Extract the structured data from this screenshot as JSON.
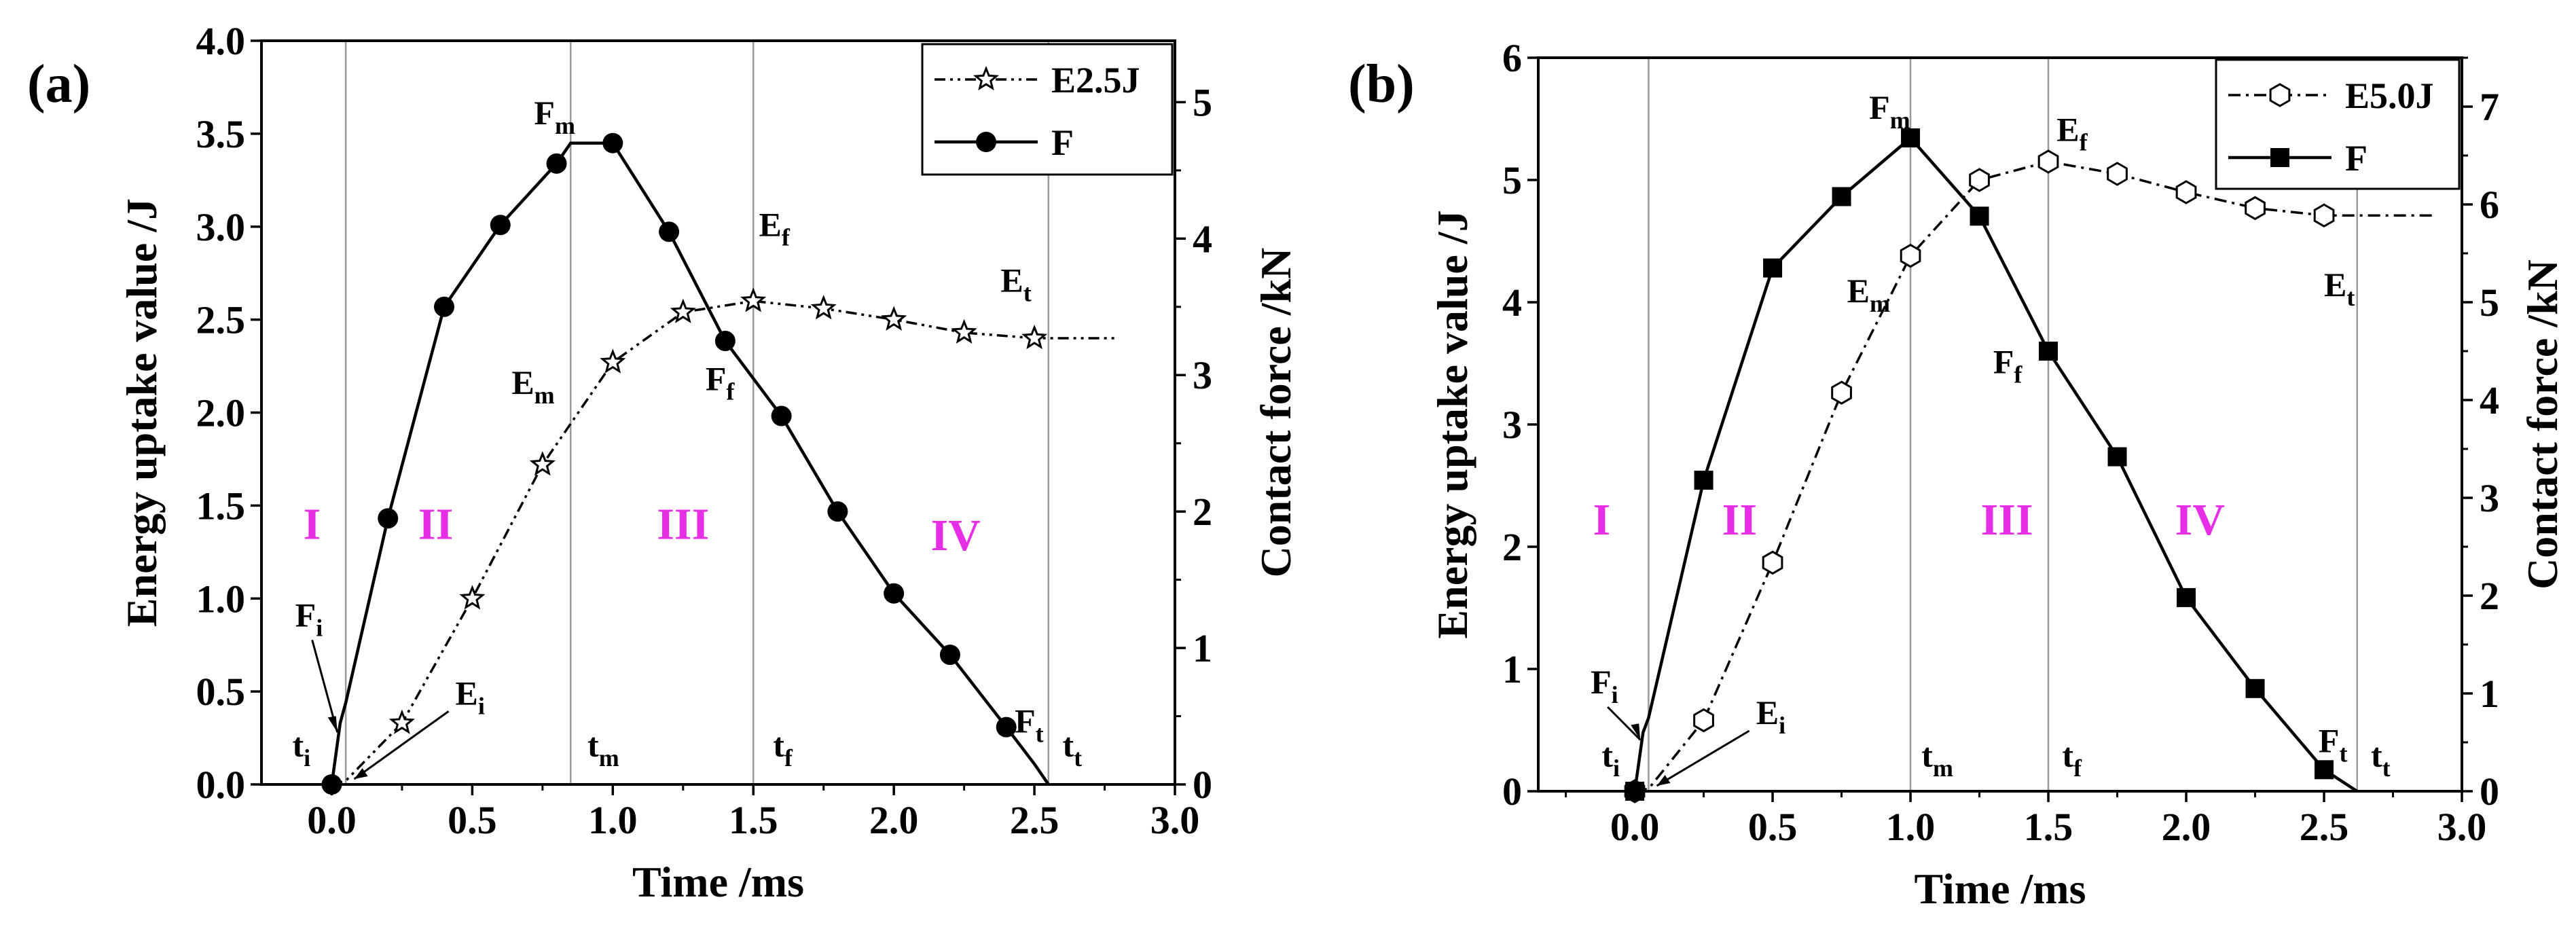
{
  "chart_data": [
    {
      "type": "line",
      "panel": "(a)",
      "xlabel": "Time /ms",
      "ylabel_left": "Energy uptake value /J",
      "ylabel_right": "Contact force /kN",
      "xlim": [
        -0.25,
        3.0
      ],
      "ylim_left": [
        0.0,
        4.0
      ],
      "ylim_right": [
        0,
        5.45
      ],
      "xticks": [
        "0.0",
        "0.5",
        "1.0",
        "1.5",
        "2.0",
        "2.5",
        "3.0"
      ],
      "xtick_values": [
        0,
        0.5,
        1,
        1.5,
        2,
        2.5,
        3
      ],
      "yticks_left": [
        "0.0",
        "0.5",
        "1.0",
        "1.5",
        "2.0",
        "2.5",
        "3.0",
        "3.5",
        "4.0"
      ],
      "ytick_left_values": [
        0,
        0.5,
        1,
        1.5,
        2,
        2.5,
        3,
        3.5,
        4
      ],
      "yticks_right": [
        "0",
        "1",
        "2",
        "3",
        "4",
        "5"
      ],
      "ytick_right_values": [
        0,
        1,
        2,
        3,
        4,
        5
      ],
      "vlines": [
        0.05,
        0.85,
        1.5,
        2.55
      ],
      "legend_location": "top-right",
      "series": [
        {
          "name": "E2.5J",
          "axis": "left",
          "style": "dash-dot-dot",
          "marker": "open-star",
          "x": [
            0,
            0.05,
            0.25,
            0.5,
            0.75,
            1.0,
            1.25,
            1.5,
            1.75,
            2.0,
            2.25,
            2.5,
            2.8
          ],
          "y": [
            0.0,
            0.02,
            0.33,
            1.0,
            1.72,
            2.27,
            2.54,
            2.6,
            2.56,
            2.5,
            2.43,
            2.4,
            2.4
          ],
          "marker_x": [
            0.25,
            0.5,
            0.75,
            1.0,
            1.25,
            1.5,
            1.75,
            2.0,
            2.25,
            2.5
          ],
          "marker_y": [
            0.33,
            1.0,
            1.72,
            2.27,
            2.54,
            2.6,
            2.56,
            2.5,
            2.43,
            2.4
          ]
        },
        {
          "name": "F",
          "axis": "right",
          "style": "solid",
          "marker": "filled-circle",
          "x": [
            0,
            0.03,
            0.05,
            0.2,
            0.4,
            0.6,
            0.8,
            0.85,
            1.0,
            1.2,
            1.4,
            1.6,
            1.8,
            2.0,
            2.2,
            2.4,
            2.5,
            2.55
          ],
          "y": [
            0.0,
            0.45,
            0.6,
            1.95,
            3.5,
            4.1,
            4.55,
            4.7,
            4.7,
            4.05,
            3.25,
            2.7,
            2.0,
            1.4,
            0.95,
            0.42,
            0.15,
            0.0
          ],
          "marker_x": [
            0,
            0.2,
            0.4,
            0.6,
            0.8,
            1.0,
            1.2,
            1.4,
            1.6,
            1.8,
            2.0,
            2.2,
            2.4
          ],
          "marker_y": [
            0.0,
            1.95,
            3.5,
            4.1,
            4.55,
            4.7,
            4.05,
            3.25,
            2.7,
            2.0,
            1.4,
            0.95,
            0.42
          ]
        }
      ],
      "annotations": [
        {
          "main": "F",
          "sub": "m",
          "x": 0.72,
          "y": 3.55,
          "axis": "left"
        },
        {
          "main": "E",
          "sub": "f",
          "x": 1.52,
          "y": 2.95,
          "axis": "left"
        },
        {
          "main": "E",
          "sub": "t",
          "x": 2.38,
          "y": 2.65,
          "axis": "left"
        },
        {
          "main": "E",
          "sub": "m",
          "x": 0.64,
          "y": 2.1,
          "axis": "left"
        },
        {
          "main": "F",
          "sub": "f",
          "x": 1.33,
          "y": 2.12,
          "axis": "left"
        },
        {
          "main": "F",
          "sub": "i",
          "x": -0.13,
          "y": 0.85,
          "axis": "left"
        },
        {
          "main": "E",
          "sub": "i",
          "x": 0.44,
          "y": 0.43,
          "axis": "left"
        },
        {
          "main": "F",
          "sub": "t",
          "x": 2.43,
          "y": 0.28,
          "axis": "left"
        },
        {
          "main": "t",
          "sub": "i",
          "x": -0.14,
          "y": 0.15,
          "axis": "left"
        },
        {
          "main": "t",
          "sub": "m",
          "x": 0.91,
          "y": 0.15,
          "axis": "left"
        },
        {
          "main": "t",
          "sub": "f",
          "x": 1.57,
          "y": 0.15,
          "axis": "left"
        },
        {
          "main": "t",
          "sub": "t",
          "x": 2.6,
          "y": 0.15,
          "axis": "left"
        }
      ],
      "regions": [
        {
          "label": "I",
          "x": -0.07,
          "y": 1.32
        },
        {
          "label": "II",
          "x": 0.37,
          "y": 1.32
        },
        {
          "label": "III",
          "x": 1.25,
          "y": 1.32
        },
        {
          "label": "IV",
          "x": 2.22,
          "y": 1.26
        }
      ]
    },
    {
      "type": "line",
      "panel": "(b)",
      "xlabel": "Time /ms",
      "ylabel_left": "Energy uptake value /J",
      "ylabel_right": "Contact force /kN",
      "xlim": [
        -0.35,
        3.0
      ],
      "ylim_left": [
        0,
        6
      ],
      "ylim_right": [
        0,
        7.5
      ],
      "xticks": [
        "0.0",
        "0.5",
        "1.0",
        "1.5",
        "2.0",
        "2.5",
        "3.0"
      ],
      "xtick_values": [
        0,
        0.5,
        1,
        1.5,
        2,
        2.5,
        3
      ],
      "yticks_left": [
        "0",
        "1",
        "2",
        "3",
        "4",
        "5",
        "6"
      ],
      "ytick_left_values": [
        0,
        1,
        2,
        3,
        4,
        5,
        6
      ],
      "yticks_right": [
        "0",
        "1",
        "2",
        "3",
        "4",
        "5",
        "6",
        "7"
      ],
      "ytick_right_values": [
        0,
        1,
        2,
        3,
        4,
        5,
        6,
        7
      ],
      "vlines": [
        0.05,
        1.0,
        1.5,
        2.62
      ],
      "legend_location": "top-right",
      "series": [
        {
          "name": "E5.0J",
          "axis": "left",
          "style": "dash-dot",
          "marker": "open-hexagon",
          "x": [
            0,
            0.05,
            0.25,
            0.5,
            0.75,
            1.0,
            1.25,
            1.5,
            1.75,
            2.0,
            2.25,
            2.5,
            2.9
          ],
          "y": [
            0.0,
            0.02,
            0.58,
            1.87,
            3.26,
            4.38,
            5.0,
            5.15,
            5.05,
            4.9,
            4.77,
            4.71,
            4.71
          ],
          "marker_x": [
            0,
            0.25,
            0.5,
            0.75,
            1.0,
            1.25,
            1.5,
            1.75,
            2.0,
            2.25,
            2.5
          ],
          "marker_y": [
            0.0,
            0.58,
            1.87,
            3.26,
            4.38,
            5.0,
            5.15,
            5.05,
            4.9,
            4.77,
            4.71
          ]
        },
        {
          "name": "F",
          "axis": "right",
          "style": "solid",
          "marker": "filled-square",
          "x": [
            0,
            0.03,
            0.05,
            0.25,
            0.5,
            0.75,
            1.0,
            1.25,
            1.5,
            1.75,
            2.0,
            2.25,
            2.5,
            2.62
          ],
          "y": [
            0.0,
            0.6,
            0.75,
            3.18,
            5.35,
            6.08,
            6.68,
            5.88,
            4.5,
            3.42,
            1.98,
            1.05,
            0.22,
            0.0
          ],
          "marker_x": [
            0,
            0.25,
            0.5,
            0.75,
            1.0,
            1.25,
            1.5,
            1.75,
            2.0,
            2.25,
            2.5
          ],
          "marker_y": [
            0.0,
            3.18,
            5.35,
            6.08,
            6.68,
            5.88,
            4.5,
            3.42,
            1.98,
            1.05,
            0.22
          ]
        }
      ],
      "annotations": [
        {
          "main": "F",
          "sub": "m",
          "x": 0.85,
          "y": 5.5,
          "axis": "left"
        },
        {
          "main": "E",
          "sub": "f",
          "x": 1.53,
          "y": 5.32,
          "axis": "left"
        },
        {
          "main": "E",
          "sub": "m",
          "x": 0.77,
          "y": 4.0,
          "axis": "left"
        },
        {
          "main": "E",
          "sub": "t",
          "x": 2.5,
          "y": 4.05,
          "axis": "left"
        },
        {
          "main": "F",
          "sub": "f",
          "x": 1.3,
          "y": 3.42,
          "axis": "left"
        },
        {
          "main": "F",
          "sub": "i",
          "x": -0.16,
          "y": 0.8,
          "axis": "left"
        },
        {
          "main": "E",
          "sub": "i",
          "x": 0.44,
          "y": 0.55,
          "axis": "left"
        },
        {
          "main": "F",
          "sub": "t",
          "x": 2.48,
          "y": 0.32,
          "axis": "left"
        },
        {
          "main": "t",
          "sub": "i",
          "x": -0.12,
          "y": 0.2,
          "axis": "left"
        },
        {
          "main": "t",
          "sub": "m",
          "x": 1.04,
          "y": 0.2,
          "axis": "left"
        },
        {
          "main": "t",
          "sub": "f",
          "x": 1.55,
          "y": 0.2,
          "axis": "left"
        },
        {
          "main": "t",
          "sub": "t",
          "x": 2.67,
          "y": 0.2,
          "axis": "left"
        }
      ],
      "regions": [
        {
          "label": "I",
          "x": -0.12,
          "y": 2.1
        },
        {
          "label": "II",
          "x": 0.38,
          "y": 2.1
        },
        {
          "label": "III",
          "x": 1.35,
          "y": 2.1
        },
        {
          "label": "IV",
          "x": 2.05,
          "y": 2.1
        }
      ]
    }
  ]
}
